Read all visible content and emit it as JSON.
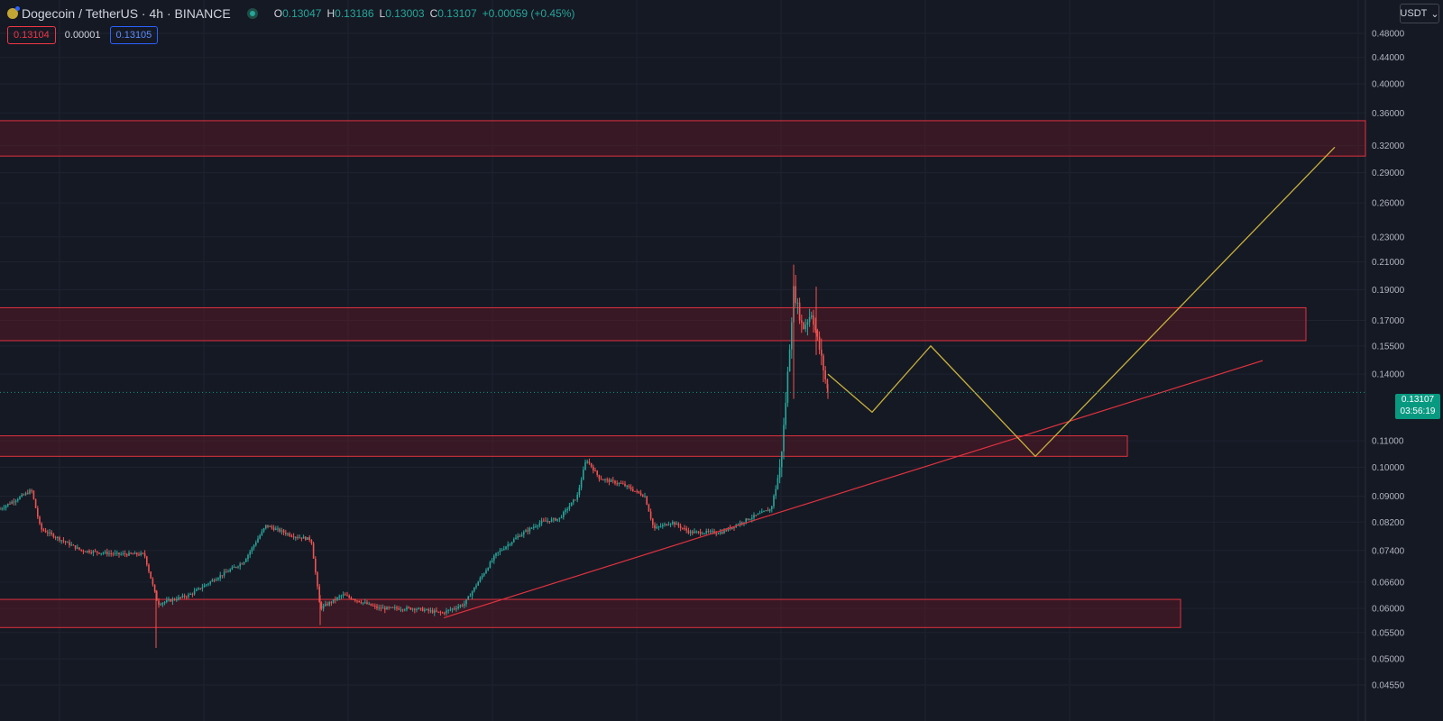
{
  "header": {
    "symbol": "Dogecoin",
    "pair": "/ TetherUS · 4h · BINANCE",
    "ohlc": {
      "o_label": "O",
      "o": "0.13047",
      "h_label": "H",
      "h": "0.13186",
      "l_label": "L",
      "l": "0.13003",
      "c_label": "C",
      "c": "0.13107",
      "change": "+0.00059 (+0.45%)"
    }
  },
  "quote": {
    "sell": "0.13104",
    "spread": "0.00001",
    "buy": "0.13105"
  },
  "currency": {
    "label": "USDT",
    "chevron": "⌄"
  },
  "last_price": {
    "price": "0.13107",
    "countdown": "03:56:19"
  },
  "colors": {
    "up": "#26a69a",
    "down": "#ef5350",
    "zone_border": "#e0323f",
    "projection": "#c9b13c",
    "trend": "#e0323f"
  },
  "chart_data": {
    "type": "candlestick",
    "y_scale": "log",
    "y_ticks": [
      "0.48000",
      "0.44000",
      "0.40000",
      "0.36000",
      "0.32000",
      "0.29000",
      "0.26000",
      "0.23000",
      "0.21000",
      "0.19000",
      "0.17000",
      "0.15500",
      "0.14000",
      "0.11000",
      "0.10000",
      "0.09000",
      "0.08200",
      "0.07400",
      "0.06600",
      "0.06000",
      "0.05500",
      "0.05000",
      "0.04550"
    ],
    "price_path": [
      [
        0,
        0.086
      ],
      [
        35,
        0.092
      ],
      [
        45,
        0.08
      ],
      [
        90,
        0.074
      ],
      [
        130,
        0.073
      ],
      [
        160,
        0.073
      ],
      [
        175,
        0.061
      ],
      [
        210,
        0.063
      ],
      [
        240,
        0.067
      ],
      [
        270,
        0.071
      ],
      [
        295,
        0.081
      ],
      [
        325,
        0.078
      ],
      [
        345,
        0.077
      ],
      [
        355,
        0.06
      ],
      [
        380,
        0.063
      ],
      [
        420,
        0.06
      ],
      [
        460,
        0.06
      ],
      [
        490,
        0.059
      ],
      [
        515,
        0.061
      ],
      [
        530,
        0.066
      ],
      [
        550,
        0.073
      ],
      [
        575,
        0.078
      ],
      [
        600,
        0.082
      ],
      [
        620,
        0.083
      ],
      [
        640,
        0.09
      ],
      [
        650,
        0.103
      ],
      [
        665,
        0.096
      ],
      [
        690,
        0.094
      ],
      [
        715,
        0.09
      ],
      [
        725,
        0.08
      ],
      [
        745,
        0.082
      ],
      [
        765,
        0.079
      ],
      [
        800,
        0.079
      ],
      [
        830,
        0.083
      ],
      [
        855,
        0.086
      ],
      [
        865,
        0.1
      ],
      [
        870,
        0.12
      ],
      [
        880,
        0.19
      ],
      [
        890,
        0.165
      ],
      [
        900,
        0.175
      ],
      [
        910,
        0.15
      ],
      [
        918,
        0.131
      ]
    ],
    "zones": [
      {
        "top": 0.35,
        "bottom": 0.308,
        "x_end": "right-edge"
      },
      {
        "top": 0.178,
        "bottom": 0.158,
        "x_end": "mid-right"
      },
      {
        "top": 0.112,
        "bottom": 0.104,
        "x_end": "mid"
      },
      {
        "top": 0.062,
        "bottom": 0.056,
        "x_end": "mid-right"
      }
    ],
    "trendline": [
      [
        492,
        0.058
      ],
      [
        1400,
        0.147
      ]
    ],
    "projection": [
      [
        918,
        0.14
      ],
      [
        967,
        0.122
      ],
      [
        1032,
        0.155
      ],
      [
        1148,
        0.104
      ],
      [
        1480,
        0.318
      ]
    ]
  }
}
